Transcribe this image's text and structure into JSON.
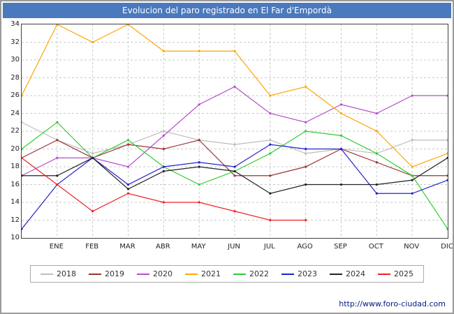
{
  "title": "Evolucion del paro registrado en El Far d'Empordà",
  "footer": {
    "link": "http://www.foro-ciudad.com"
  },
  "chart_data": {
    "type": "line",
    "title": "Evolucion del paro registrado en El Far d'Empordà",
    "months": [
      "ENE",
      "FEB",
      "MAR",
      "ABR",
      "MAY",
      "JUN",
      "JUL",
      "AGO",
      "SEP",
      "OCT",
      "NOV",
      "DIC"
    ],
    "yticks": [
      34,
      32,
      30,
      28,
      26,
      24,
      22,
      20,
      18,
      16,
      14,
      12,
      10
    ],
    "ylim": [
      10,
      34
    ],
    "grid": true,
    "legend_position": "bottom",
    "series": [
      {
        "name": "2018",
        "color": "#bdbdbd",
        "values": [
          23,
          21,
          19.5,
          20.5,
          22,
          21,
          20.5,
          21,
          19.5,
          20,
          19.5,
          21,
          21
        ]
      },
      {
        "name": "2019",
        "color": "#993333",
        "values": [
          19,
          21,
          19,
          20.5,
          20,
          21,
          17,
          17,
          18,
          20,
          18.5,
          17,
          17
        ]
      },
      {
        "name": "2020",
        "color": "#b54fc9",
        "values": [
          17,
          19,
          19,
          18,
          21.5,
          25,
          27,
          24,
          23,
          25,
          24,
          26,
          26
        ]
      },
      {
        "name": "2021",
        "color": "#ffa500",
        "values": [
          26,
          34,
          32,
          34,
          31,
          31,
          31,
          26,
          27,
          24,
          22,
          18,
          19.5
        ]
      },
      {
        "name": "2022",
        "color": "#33cc33",
        "values": [
          20,
          23,
          19,
          21,
          18,
          16,
          17.5,
          19.5,
          22,
          21.5,
          19.5,
          17,
          11
        ]
      },
      {
        "name": "2023",
        "color": "#2222cc",
        "values": [
          11,
          16,
          19,
          16,
          18,
          18.5,
          18,
          20.5,
          20,
          20,
          15,
          15,
          16.5
        ]
      },
      {
        "name": "2024",
        "color": "#222222",
        "values": [
          17,
          17,
          19,
          15.5,
          17.5,
          18,
          17.5,
          15,
          16,
          16,
          16,
          16.5,
          19
        ]
      },
      {
        "name": "2025",
        "color": "#ee2222",
        "values": [
          19,
          16,
          13,
          15,
          14,
          14,
          13,
          12,
          12,
          null,
          null,
          null,
          null
        ]
      }
    ]
  }
}
